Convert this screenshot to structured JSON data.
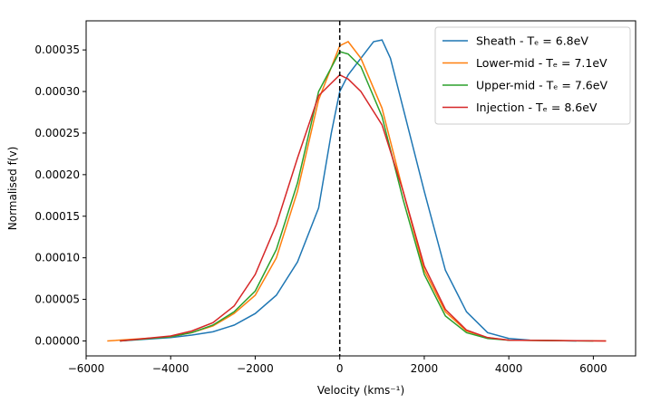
{
  "chart_data": {
    "type": "line",
    "xlabel": "Velocity (kms⁻¹)",
    "ylabel": "Normalised f(v)",
    "xlim": [
      -6000,
      7000
    ],
    "ylim": [
      -1.8e-05,
      0.000385
    ],
    "x_ticks": [
      -6000,
      -4000,
      -2000,
      0,
      2000,
      4000,
      6000
    ],
    "x_tick_labels": [
      "−6000",
      "−4000",
      "−2000",
      "0",
      "2000",
      "4000",
      "6000"
    ],
    "y_ticks": [
      0,
      5e-05,
      0.0001,
      0.00015,
      0.0002,
      0.00025,
      0.0003,
      0.00035
    ],
    "y_tick_labels": [
      "0.00000",
      "0.00005",
      "0.00010",
      "0.00015",
      "0.00020",
      "0.00025",
      "0.00030",
      "0.00035"
    ],
    "vline": {
      "x": 0,
      "style": "dashed",
      "color": "#000000"
    },
    "legend_position": "top-right",
    "grid": false,
    "series": [
      {
        "name": "Sheath - Tₑ = 6.8eV",
        "color": "#1f77b4",
        "x": [
          -5200,
          -4000,
          -3500,
          -3000,
          -2500,
          -2000,
          -1500,
          -1000,
          -500,
          -200,
          0,
          200,
          500,
          800,
          1000,
          1200,
          1500,
          2000,
          2500,
          3000,
          3500,
          4000,
          4500,
          5600
        ],
        "values": [
          0,
          4e-06,
          7e-06,
          1.1e-05,
          1.9e-05,
          3.3e-05,
          5.5e-05,
          9.5e-05,
          0.00016,
          0.00025,
          0.0003,
          0.00032,
          0.00034,
          0.00036,
          0.000362,
          0.00034,
          0.00028,
          0.00018,
          8.5e-05,
          3.5e-05,
          1e-05,
          3e-06,
          1e-06,
          0
        ]
      },
      {
        "name": "Lower-mid - Tₑ = 7.1eV",
        "color": "#ff7f0e",
        "x": [
          -5500,
          -4000,
          -3500,
          -3000,
          -2500,
          -2000,
          -1500,
          -1000,
          -500,
          0,
          200,
          500,
          1000,
          1500,
          2000,
          2500,
          3000,
          3500,
          4000,
          6300
        ],
        "values": [
          0,
          5e-06,
          1e-05,
          1.8e-05,
          3.3e-05,
          5.5e-05,
          0.0001,
          0.00018,
          0.00029,
          0.000355,
          0.00036,
          0.00034,
          0.00028,
          0.00018,
          8.5e-05,
          3.5e-05,
          1.2e-05,
          4e-06,
          1e-06,
          0
        ]
      },
      {
        "name": "Upper-mid - Tₑ = 7.6eV",
        "color": "#2ca02c",
        "x": [
          -5200,
          -4000,
          -3500,
          -3000,
          -2500,
          -2000,
          -1500,
          -1000,
          -500,
          0,
          200,
          500,
          1000,
          1500,
          2000,
          2500,
          3000,
          3500,
          4000,
          6000
        ],
        "values": [
          0,
          5e-06,
          1e-05,
          1.9e-05,
          3.5e-05,
          6e-05,
          0.00011,
          0.00019,
          0.0003,
          0.000348,
          0.000345,
          0.00033,
          0.00027,
          0.00017,
          8e-05,
          3e-05,
          1e-05,
          3e-06,
          1e-06,
          0
        ]
      },
      {
        "name": "Injection - Tₑ = 8.6eV",
        "color": "#d62728",
        "x": [
          -5200,
          -4000,
          -3500,
          -3000,
          -2500,
          -2000,
          -1500,
          -1000,
          -500,
          0,
          200,
          500,
          1000,
          1500,
          2000,
          2500,
          3000,
          3500,
          4000,
          6300
        ],
        "values": [
          0,
          6e-06,
          1.2e-05,
          2.2e-05,
          4.2e-05,
          8e-05,
          0.00014,
          0.00022,
          0.000295,
          0.00032,
          0.000315,
          0.0003,
          0.00026,
          0.00018,
          9e-05,
          3.8e-05,
          1.3e-05,
          4e-06,
          1e-06,
          0
        ]
      }
    ]
  }
}
